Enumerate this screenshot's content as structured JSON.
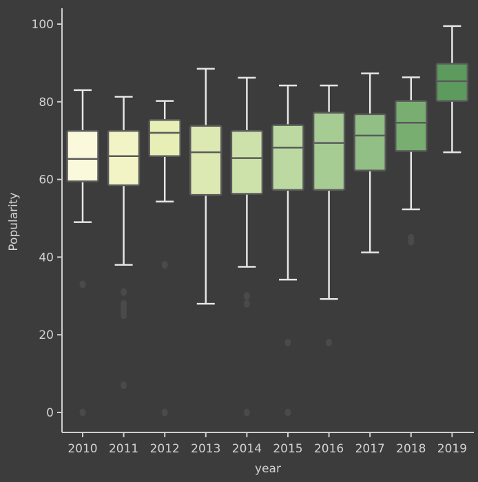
{
  "chart_data": {
    "type": "boxplot",
    "xlabel": "year",
    "ylabel": "Popularity",
    "ylim": [
      -5,
      104
    ],
    "yticks": [
      0,
      20,
      40,
      60,
      80,
      100
    ],
    "grid": false,
    "categories": [
      "2010",
      "2011",
      "2012",
      "2013",
      "2014",
      "2015",
      "2016",
      "2017",
      "2018",
      "2019"
    ],
    "series": [
      {
        "boxes": [
          {
            "category": "2010",
            "whisker_low": 49,
            "q1": 59.5,
            "median": 65.3,
            "q3": 72.5,
            "whisker_high": 83,
            "color": "#fbf9dc",
            "outliers": [
              0,
              33
            ]
          },
          {
            "category": "2011",
            "whisker_low": 38,
            "q1": 58.5,
            "median": 66,
            "q3": 72.5,
            "whisker_high": 81.3,
            "color": "#f3f4c6",
            "outliers": [
              7,
              25,
              26,
              27,
              28,
              31
            ]
          },
          {
            "category": "2012",
            "whisker_low": 54.3,
            "q1": 66,
            "median": 72,
            "q3": 75.3,
            "whisker_high": 80.2,
            "color": "#e7efb6",
            "outliers": [
              0,
              38
            ]
          },
          {
            "category": "2013",
            "whisker_low": 28,
            "q1": 56,
            "median": 67,
            "q3": 73.8,
            "whisker_high": 88.5,
            "color": "#dde9b2",
            "outliers": []
          },
          {
            "category": "2014",
            "whisker_low": 37.5,
            "q1": 56.3,
            "median": 65.5,
            "q3": 72.5,
            "whisker_high": 86.2,
            "color": "#cde2ab",
            "outliers": [
              0,
              28,
              30
            ]
          },
          {
            "category": "2015",
            "whisker_low": 34.2,
            "q1": 57.3,
            "median": 68.2,
            "q3": 74,
            "whisker_high": 84.2,
            "color": "#bcd9a2",
            "outliers": [
              0,
              18
            ]
          },
          {
            "category": "2016",
            "whisker_low": 29.2,
            "q1": 57.3,
            "median": 69.4,
            "q3": 77.2,
            "whisker_high": 84.2,
            "color": "#a6cb93",
            "outliers": [
              18
            ]
          },
          {
            "category": "2017",
            "whisker_low": 41.2,
            "q1": 62.3,
            "median": 71.3,
            "q3": 76.8,
            "whisker_high": 87.3,
            "color": "#91bf86",
            "outliers": []
          },
          {
            "category": "2018",
            "whisker_low": 52.3,
            "q1": 67.3,
            "median": 74.6,
            "q3": 80.2,
            "whisker_high": 86.3,
            "color": "#78af71",
            "outliers": [
              44,
              45
            ]
          },
          {
            "category": "2019",
            "whisker_low": 67,
            "q1": 80.2,
            "median": 85.3,
            "q3": 89.8,
            "whisker_high": 99.5,
            "color": "#5c9a5e",
            "outliers": []
          }
        ]
      }
    ]
  },
  "colors": {
    "background": "#3c3c3c",
    "axis": "#cfcfcf",
    "text": "#d2d2d2",
    "box_edge": "#5a5a5a",
    "whisker": "#e6e6e6",
    "outlier": "#4a4a4a"
  }
}
